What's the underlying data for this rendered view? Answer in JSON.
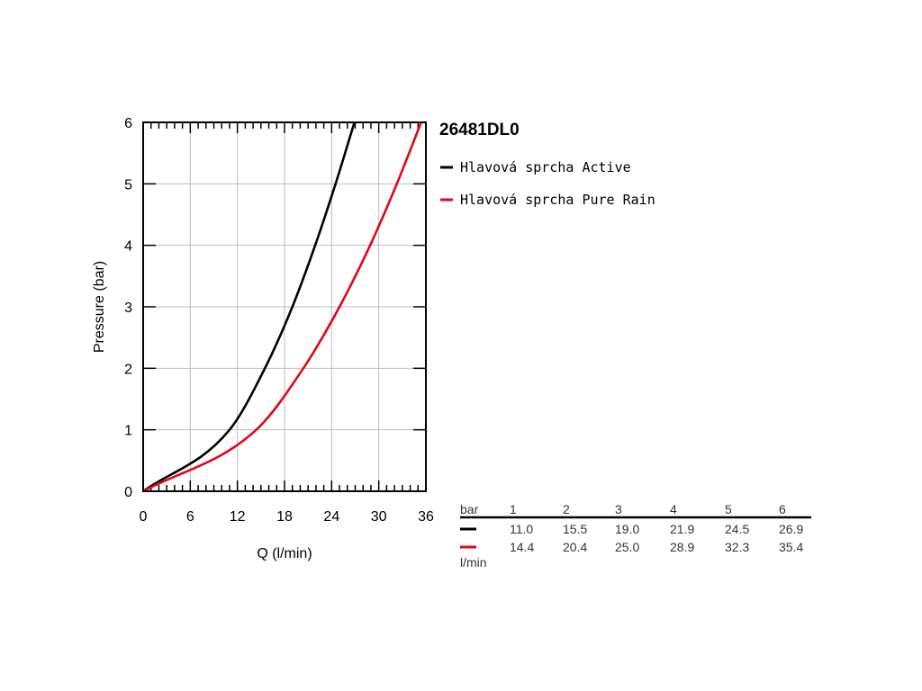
{
  "chart_data": {
    "type": "line",
    "title": "26481DL0",
    "xlabel": "Q (l/min)",
    "ylabel": "Pressure (bar)",
    "xlim": [
      0,
      36
    ],
    "ylim": [
      0,
      6
    ],
    "x_ticks": [
      "0",
      "6",
      "12",
      "18",
      "24",
      "30",
      "36"
    ],
    "y_ticks": [
      "0",
      "1",
      "2",
      "3",
      "4",
      "5",
      "6"
    ],
    "grid": true,
    "legend_position": "right",
    "series": [
      {
        "name": "Hlavová sprcha Active",
        "color": "#000000",
        "points": [
          [
            0,
            0
          ],
          [
            11.0,
            1
          ],
          [
            15.5,
            2
          ],
          [
            19.0,
            3
          ],
          [
            21.9,
            4
          ],
          [
            24.5,
            5
          ],
          [
            26.9,
            6
          ]
        ]
      },
      {
        "name": "Hlavová sprcha Pure Rain",
        "color": "#e30613",
        "points": [
          [
            0,
            0
          ],
          [
            14.4,
            1
          ],
          [
            20.4,
            2
          ],
          [
            25.0,
            3
          ],
          [
            28.9,
            4
          ],
          [
            32.3,
            5
          ],
          [
            35.4,
            6
          ]
        ]
      }
    ]
  },
  "table": {
    "header_label": "bar",
    "unit_label": "l/min",
    "pressures": [
      "1",
      "2",
      "3",
      "4",
      "5",
      "6"
    ],
    "rows": [
      {
        "color": "#000000",
        "values": [
          "11.0",
          "15.5",
          "19.0",
          "21.9",
          "24.5",
          "26.9"
        ]
      },
      {
        "color": "#e30613",
        "values": [
          "14.4",
          "20.4",
          "25.0",
          "28.9",
          "32.3",
          "35.4"
        ]
      }
    ]
  }
}
